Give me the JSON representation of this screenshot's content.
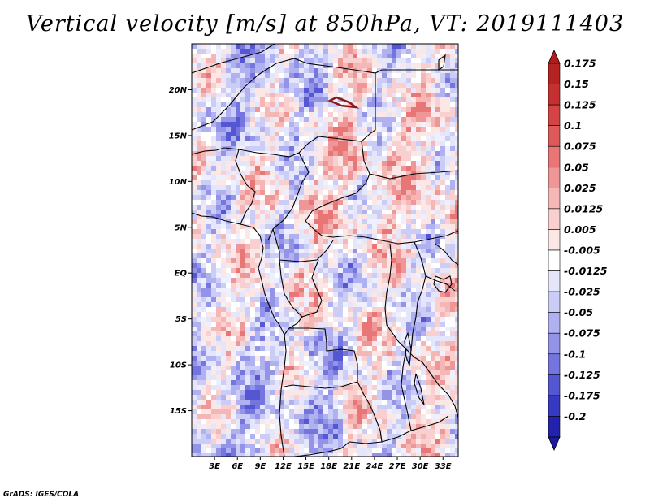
{
  "title": "Vertical velocity [m/s] at 850hPa, VT: 2019111403",
  "credit": "GrADS: IGES/COLA",
  "map": {
    "lon_range": [
      0,
      35
    ],
    "lat_range": [
      -20,
      25
    ],
    "y_ticks": [
      {
        "lat": 20,
        "label": "20N"
      },
      {
        "lat": 15,
        "label": "15N"
      },
      {
        "lat": 10,
        "label": "10N"
      },
      {
        "lat": 5,
        "label": "5N"
      },
      {
        "lat": 0,
        "label": "EQ"
      },
      {
        "lat": -5,
        "label": "5S"
      },
      {
        "lat": -10,
        "label": "10S"
      },
      {
        "lat": -15,
        "label": "15S"
      }
    ],
    "x_ticks": [
      {
        "lon": 3,
        "label": "3E"
      },
      {
        "lon": 6,
        "label": "6E"
      },
      {
        "lon": 9,
        "label": "9E"
      },
      {
        "lon": 12,
        "label": "12E"
      },
      {
        "lon": 15,
        "label": "15E"
      },
      {
        "lon": 18,
        "label": "18E"
      },
      {
        "lon": 21,
        "label": "21E"
      },
      {
        "lon": 24,
        "label": "24E"
      },
      {
        "lon": 27,
        "label": "27E"
      },
      {
        "lon": 30,
        "label": "30E"
      },
      {
        "lon": 33,
        "label": "33E"
      }
    ]
  },
  "colorbar": {
    "levels": [
      {
        "label": "0.175",
        "color": "#b52222"
      },
      {
        "label": "0.15",
        "color": "#c63030"
      },
      {
        "label": "0.125",
        "color": "#d44444"
      },
      {
        "label": "0.1",
        "color": "#de5a5a"
      },
      {
        "label": "0.075",
        "color": "#e87676"
      },
      {
        "label": "0.05",
        "color": "#ef9696"
      },
      {
        "label": "0.025",
        "color": "#f5b6b6"
      },
      {
        "label": "0.0125",
        "color": "#f9cfcf"
      },
      {
        "label": "0.005",
        "color": "#fce7e7"
      },
      {
        "label": "-0.005",
        "color": "#ffffff"
      },
      {
        "label": "-0.0125",
        "color": "#e6e6fb"
      },
      {
        "label": "-0.025",
        "color": "#cccdf6"
      },
      {
        "label": "-0.05",
        "color": "#b0b1f0"
      },
      {
        "label": "-0.075",
        "color": "#9394e8"
      },
      {
        "label": "-0.1",
        "color": "#7475df"
      },
      {
        "label": "-0.125",
        "color": "#5556d2"
      },
      {
        "label": "-0.175",
        "color": "#3839c2"
      },
      {
        "label": "-0.2",
        "color": "#2222ac"
      }
    ],
    "top_arrow_color": "#b01c1c",
    "bottom_arrow_color": "#1a1a9e"
  }
}
